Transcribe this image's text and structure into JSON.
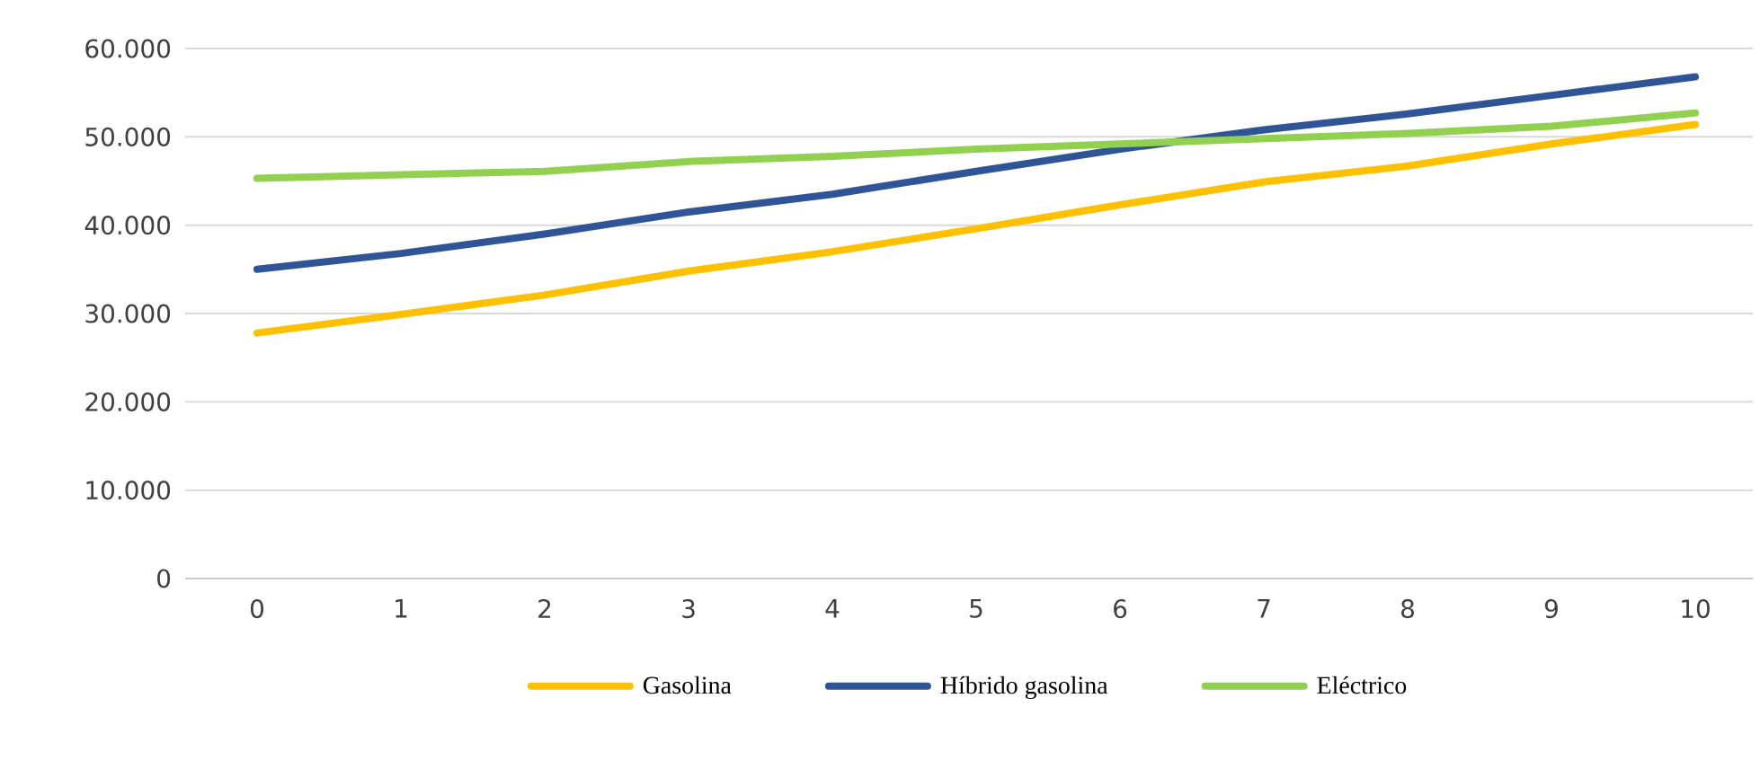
{
  "chart_data": {
    "type": "line",
    "categories": [
      "0",
      "1",
      "2",
      "3",
      "4",
      "5",
      "6",
      "7",
      "8",
      "9",
      "10"
    ],
    "series": [
      {
        "name": "Gasolina",
        "color": "#ffc000",
        "values": [
          27800,
          29900,
          32100,
          34800,
          37000,
          39600,
          42300,
          44900,
          46700,
          49200,
          51400
        ]
      },
      {
        "name": "Híbrido gasolina",
        "color": "#2f5597",
        "values": [
          35000,
          36800,
          39000,
          41500,
          43500,
          46100,
          48600,
          50800,
          52600,
          54700,
          56800
        ]
      },
      {
        "name": "Eléctrico",
        "color": "#92d050",
        "values": [
          45300,
          45700,
          46100,
          47200,
          47800,
          48600,
          49200,
          49800,
          50400,
          51200,
          52700
        ]
      }
    ],
    "ylim": [
      0,
      60000
    ],
    "yticks": [
      0,
      {
        "value": 10000,
        "label": "10.000"
      },
      {
        "value": 20000,
        "label": "20.000"
      },
      {
        "value": 30000,
        "label": "30.000"
      },
      {
        "value": 40000,
        "label": "40.000"
      },
      {
        "value": 50000,
        "label": "50.000"
      },
      {
        "value": 60000,
        "label": "60.000"
      }
    ],
    "grid": "y",
    "legend": "bottom",
    "marker": "none",
    "line_style": "solid"
  }
}
